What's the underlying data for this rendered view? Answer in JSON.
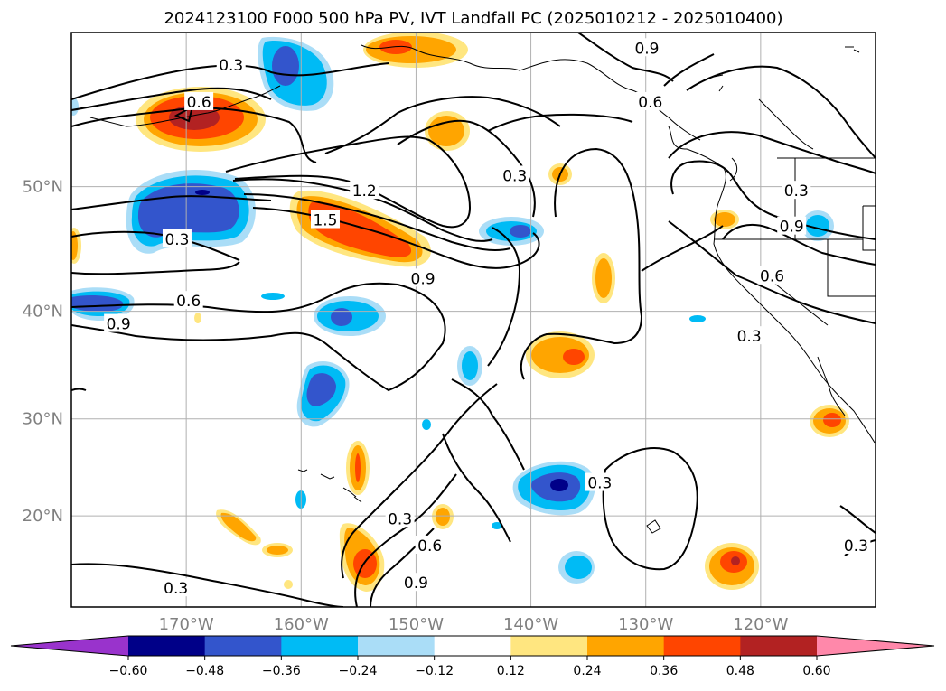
{
  "title": "2024123100 F000 500 hPa PV, IVT Landfall PC (2025010212 - 2025010400)",
  "map": {
    "lon_range": [
      -180,
      -110
    ],
    "lat_range": [
      10,
      60
    ],
    "lon_ticks": [
      {
        "lon": -170,
        "label": "170°W"
      },
      {
        "lon": -160,
        "label": "160°W"
      },
      {
        "lon": -150,
        "label": "150°W"
      },
      {
        "lon": -140,
        "label": "140°W"
      },
      {
        "lon": -130,
        "label": "130°W"
      },
      {
        "lon": -120,
        "label": "120°W"
      }
    ],
    "lat_ticks": [
      {
        "lat": 50,
        "label": "50°N"
      },
      {
        "lat": 40,
        "label": "40°N"
      },
      {
        "lat": 30,
        "label": "30°N"
      },
      {
        "lat": 20,
        "label": "20°N"
      }
    ],
    "gridlines": true,
    "contour_labels": [
      {
        "text": "0.3",
        "lon": -166.1,
        "lat": 58.1
      },
      {
        "text": "0.6",
        "lon": -168.9,
        "lat": 55.8
      },
      {
        "text": "0.9",
        "lon": -129.9,
        "lat": 59.1
      },
      {
        "text": "0.6",
        "lon": -129.6,
        "lat": 55.8
      },
      {
        "text": "0.3",
        "lon": -141.4,
        "lat": 50.8
      },
      {
        "text": "1.2",
        "lon": -154.5,
        "lat": 49.7
      },
      {
        "text": "1.5",
        "lon": -157.9,
        "lat": 47.5
      },
      {
        "text": "0.9",
        "lon": -149.4,
        "lat": 42.8
      },
      {
        "text": "0.3",
        "lon": -170.8,
        "lat": 46.0
      },
      {
        "text": "0.6",
        "lon": -169.8,
        "lat": 40.9
      },
      {
        "text": "0.9",
        "lon": -175.9,
        "lat": 38.9
      },
      {
        "text": "0.3",
        "lon": -116.9,
        "lat": 49.7
      },
      {
        "text": "0.9",
        "lon": -117.3,
        "lat": 47.0
      },
      {
        "text": "0.6",
        "lon": -119.0,
        "lat": 43.0
      },
      {
        "text": "0.3",
        "lon": -121.0,
        "lat": 37.8
      },
      {
        "text": "0.3",
        "lon": -134.0,
        "lat": 23.5
      },
      {
        "text": "0.3",
        "lon": -151.4,
        "lat": 19.7
      },
      {
        "text": "0.6",
        "lon": -148.8,
        "lat": 16.8
      },
      {
        "text": "0.9",
        "lon": -150.0,
        "lat": 12.7
      },
      {
        "text": "0.3",
        "lon": -170.9,
        "lat": 12.1
      },
      {
        "text": "0.3",
        "lon": -111.7,
        "lat": 16.8
      }
    ]
  },
  "colorbar": {
    "levels": [
      -0.6,
      -0.48,
      -0.36,
      -0.24,
      -0.12,
      0.12,
      0.24,
      0.36,
      0.48,
      0.6
    ],
    "tick_labels": [
      "−0.60",
      "−0.48",
      "−0.36",
      "−0.24",
      "−0.12",
      "0.12",
      "0.24",
      "0.36",
      "0.48",
      "0.60"
    ],
    "colors": [
      "#9933cc",
      "#000088",
      "#3355cc",
      "#00bbf5",
      "#aaddf7",
      "#ffffff",
      "#ffe680",
      "#ffa500",
      "#ff4500",
      "#b22222",
      "#ff88aa"
    ],
    "extend": "both"
  },
  "colors": {
    "neg_strong": "#3355cc",
    "neg_mid": "#00bbf5",
    "neg_weak": "#aaddf7",
    "neg_max": "#000088",
    "pos_weak": "#ffe680",
    "pos_mid": "#ffa500",
    "pos_strong": "#ff4500",
    "pos_max": "#b22222"
  }
}
